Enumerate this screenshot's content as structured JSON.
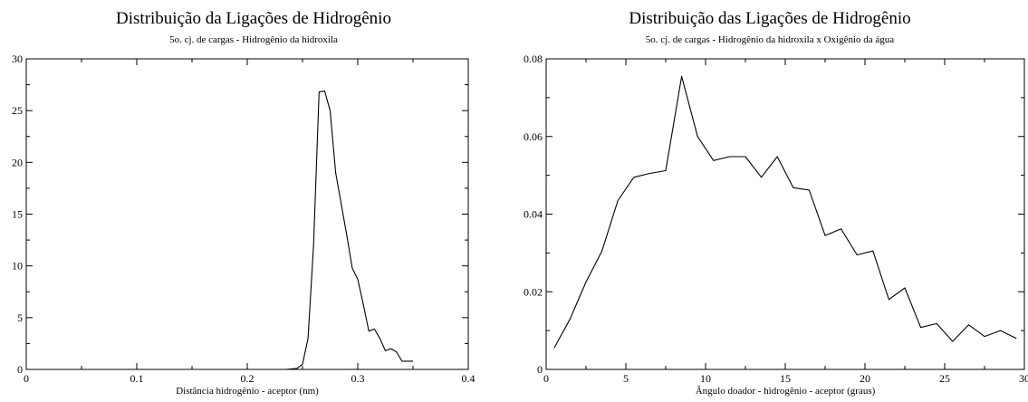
{
  "chart_data": [
    {
      "type": "line",
      "title": "Distribuição da Ligações de Hidrogênio",
      "subtitle": "5o. cj. de cargas - Hidrogênio da hidroxila",
      "xlabel": "Distância hidrogênio - aceptor (nm)",
      "ylabel": "",
      "xlim": [
        0,
        0.4
      ],
      "ylim": [
        0,
        30
      ],
      "xticks": [
        0,
        0.1,
        0.2,
        0.3,
        0.4
      ],
      "xtick_labels": [
        "0",
        "0.1",
        "0.2",
        "0.3",
        "0.4"
      ],
      "yticks": [
        0,
        5,
        10,
        15,
        20,
        25,
        30
      ],
      "ytick_labels": [
        "0",
        "5",
        "10",
        "15",
        "20",
        "25",
        "30"
      ],
      "grid": false,
      "series": [
        {
          "color": "#000000",
          "x": [
            0.0,
            0.235,
            0.245,
            0.25,
            0.255,
            0.26,
            0.265,
            0.27,
            0.275,
            0.28,
            0.285,
            0.29,
            0.295,
            0.3,
            0.305,
            0.31,
            0.315,
            0.32,
            0.325,
            0.33,
            0.335,
            0.34,
            0.345,
            0.35
          ],
          "y": [
            0.0,
            0.0,
            0.1,
            0.5,
            3.0,
            12.0,
            26.8,
            26.9,
            25.0,
            19.0,
            16.0,
            13.0,
            9.8,
            8.7,
            6.3,
            3.7,
            3.9,
            3.0,
            1.8,
            2.0,
            1.7,
            0.8,
            0.8,
            0.8
          ]
        }
      ]
    },
    {
      "type": "line",
      "title": "Distribuição das Ligações de Hidrogênio",
      "subtitle": "5o. cj. de cargas - Hidrogênio da hidroxila x Oxigênio da água",
      "xlabel": "Ângulo doador - hidrogênio - aceptor (graus)",
      "ylabel": "",
      "xlim": [
        0,
        30
      ],
      "ylim": [
        0,
        0.08
      ],
      "xticks": [
        0,
        5,
        10,
        15,
        20,
        25,
        30
      ],
      "xtick_labels": [
        "0",
        "5",
        "10",
        "15",
        "20",
        "25",
        "30"
      ],
      "yticks": [
        0,
        0.02,
        0.04,
        0.06,
        0.08
      ],
      "ytick_labels": [
        "0",
        "0.02",
        "0.04",
        "0.06",
        "0.08"
      ],
      "grid": false,
      "series": [
        {
          "color": "#000000",
          "x": [
            0.5,
            1.5,
            2.5,
            3.5,
            4.5,
            5.5,
            6.5,
            7.5,
            8.5,
            9.5,
            10.5,
            11.5,
            12.5,
            13.5,
            14.5,
            15.5,
            16.5,
            17.5,
            18.5,
            19.5,
            20.5,
            21.5,
            22.5,
            23.5,
            24.5,
            25.5,
            26.5,
            27.5,
            28.5,
            29.5
          ],
          "y": [
            0.0055,
            0.013,
            0.0225,
            0.0305,
            0.0435,
            0.0495,
            0.0505,
            0.0512,
            0.0755,
            0.06,
            0.0538,
            0.0548,
            0.0548,
            0.0495,
            0.0548,
            0.0468,
            0.0462,
            0.0345,
            0.0362,
            0.0295,
            0.0305,
            0.018,
            0.021,
            0.0108,
            0.0118,
            0.0072,
            0.0115,
            0.0085,
            0.01,
            0.008
          ]
        }
      ]
    }
  ]
}
